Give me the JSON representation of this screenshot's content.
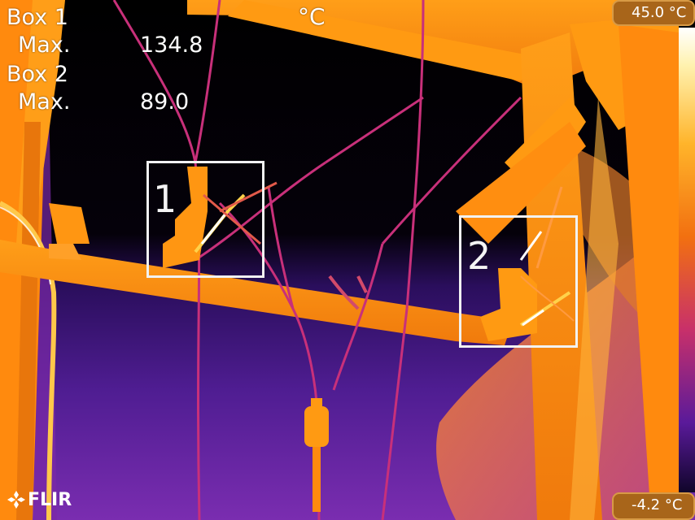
{
  "readout": {
    "box1_label": "Box 1",
    "box1_max_label": "Max.",
    "box1_max_value": "134.8",
    "box2_label": "Box 2",
    "box2_max_label": "Max.",
    "box2_max_value": "89.0",
    "unit": "°C"
  },
  "boxes": [
    {
      "number": "1"
    },
    {
      "number": "2"
    }
  ],
  "scale": {
    "max_label": "45.0 °C",
    "min_label": "-4.2 °C"
  },
  "brand": {
    "logo_text": "FLIR",
    "logo_icon": "flir-diamond-icon"
  },
  "palette": {
    "background_top": "#000000",
    "background_bottom": "#6a25a8",
    "hot": "#ff9a10",
    "hotter": "#ffd24a",
    "hottest": "#ffffff",
    "cool_wire": "#c8307a"
  }
}
